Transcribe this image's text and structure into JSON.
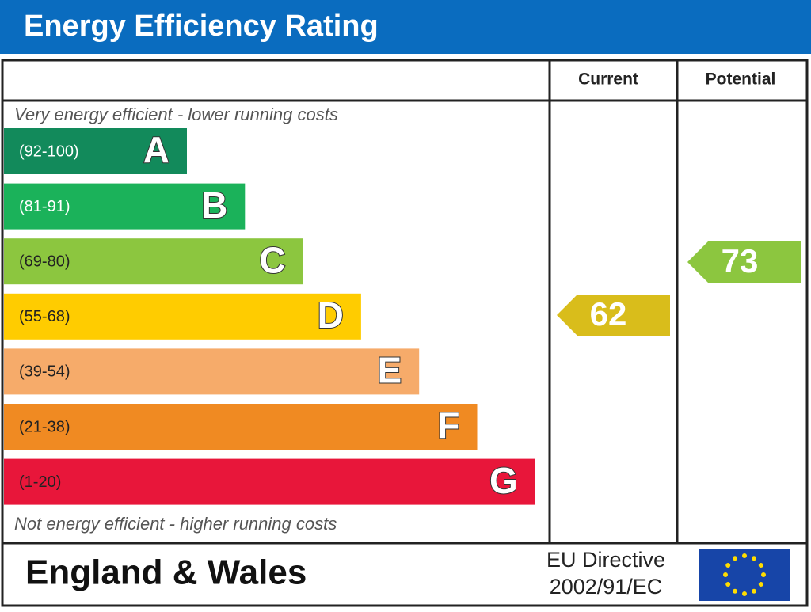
{
  "header": {
    "title": "Energy Efficiency Rating"
  },
  "columns": {
    "current": "Current",
    "potential": "Potential"
  },
  "notes": {
    "top": "Very energy efficient - lower running costs",
    "bottom": "Not energy efficient - higher running costs"
  },
  "bands": [
    {
      "range": "(92-100)",
      "letter": "A"
    },
    {
      "range": "(81-91)",
      "letter": "B"
    },
    {
      "range": "(69-80)",
      "letter": "C"
    },
    {
      "range": "(55-68)",
      "letter": "D"
    },
    {
      "range": "(39-54)",
      "letter": "E"
    },
    {
      "range": "(21-38)",
      "letter": "F"
    },
    {
      "range": "(1-20)",
      "letter": "G"
    }
  ],
  "ratings": {
    "current": 62,
    "potential": 73
  },
  "footer": {
    "region": "England & Wales",
    "directive_line1": "EU Directive",
    "directive_line2": "2002/91/EC"
  }
}
